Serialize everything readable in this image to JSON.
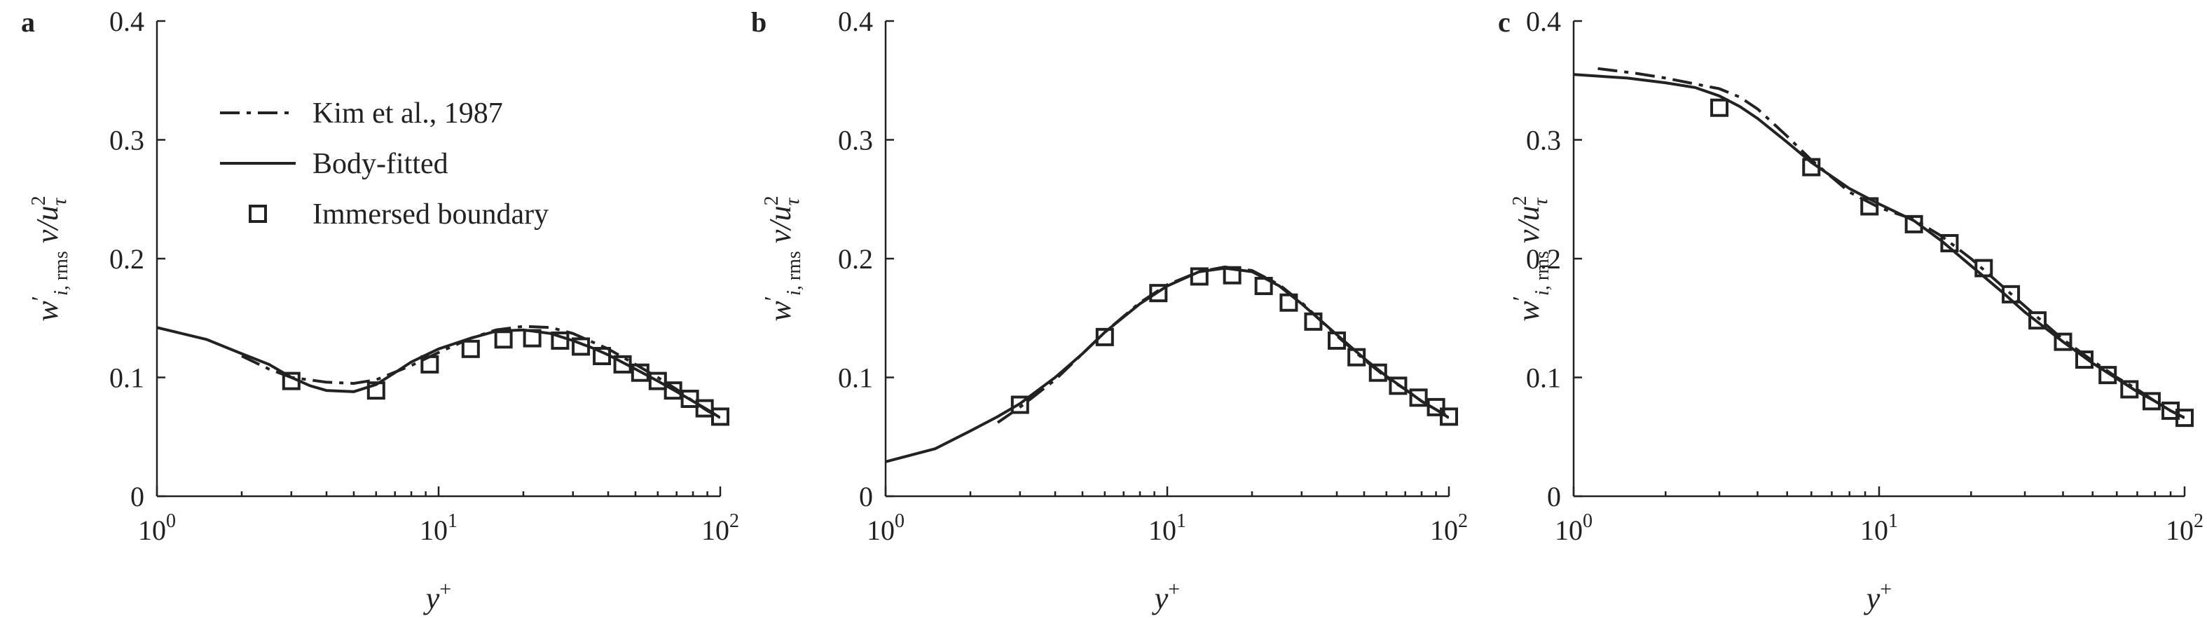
{
  "chart_data": [
    {
      "panel": "a",
      "type": "line",
      "xscale": "log",
      "xlim": [
        1,
        100
      ],
      "ylim": [
        0,
        0.4
      ],
      "xticks": [
        1,
        10,
        100
      ],
      "xtick_labels": [
        [
          "10",
          "0"
        ],
        [
          "10",
          "1"
        ],
        [
          "10",
          "2"
        ]
      ],
      "yticks": [
        0,
        0.1,
        0.2,
        0.3,
        0.4
      ],
      "ytick_labels": [
        "0",
        "0.1",
        "0.2",
        "0.3",
        "0.4"
      ],
      "xlabel": "y+",
      "ylabel": "w'i, rms v/u²τ",
      "legend": {
        "placement": "top-left",
        "entries": [
          "Kim et al., 1987",
          "Body-fitted",
          "Immersed boundary"
        ]
      },
      "series": [
        {
          "name": "Kim et al., 1987",
          "style": "dashdot",
          "x": [
            2.0,
            2.5,
            3.0,
            4.0,
            5.0,
            6.0,
            8.0,
            10.0,
            13.0,
            16.0,
            20.0,
            25.0,
            30.0,
            40.0,
            50.0,
            60.0,
            70.0,
            80.0,
            90.0,
            100.0
          ],
          "y": [
            0.118,
            0.107,
            0.1,
            0.096,
            0.095,
            0.098,
            0.11,
            0.121,
            0.133,
            0.14,
            0.143,
            0.142,
            0.137,
            0.124,
            0.111,
            0.1,
            0.09,
            0.08,
            0.072,
            0.066
          ]
        },
        {
          "name": "Body-fitted",
          "style": "solid",
          "x": [
            1.0,
            1.5,
            2.0,
            2.5,
            3.0,
            3.5,
            4.0,
            5.0,
            6.0,
            7.0,
            8.0,
            10.0,
            13.0,
            16.0,
            20.0,
            25.0,
            30.0,
            35.0,
            40.0,
            50.0,
            60.0,
            70.0,
            80.0,
            90.0,
            100.0
          ],
          "y": [
            0.142,
            0.132,
            0.12,
            0.111,
            0.1,
            0.093,
            0.089,
            0.088,
            0.094,
            0.104,
            0.113,
            0.124,
            0.133,
            0.139,
            0.14,
            0.137,
            0.131,
            0.125,
            0.119,
            0.107,
            0.097,
            0.088,
            0.08,
            0.073,
            0.066
          ]
        },
        {
          "name": "Immersed boundary",
          "style": "square-marker",
          "x": [
            3.0,
            6.0,
            9.3,
            13.0,
            17.0,
            21.5,
            27.0,
            32.0,
            38.0,
            45.0,
            52.0,
            60.0,
            68.0,
            78.0,
            88.0,
            100.0
          ],
          "y": [
            0.097,
            0.089,
            0.111,
            0.124,
            0.132,
            0.133,
            0.131,
            0.126,
            0.118,
            0.111,
            0.104,
            0.097,
            0.089,
            0.082,
            0.074,
            0.067
          ]
        }
      ]
    },
    {
      "panel": "b",
      "type": "line",
      "xscale": "log",
      "xlim": [
        1,
        100
      ],
      "ylim": [
        0,
        0.4
      ],
      "xticks": [
        1,
        10,
        100
      ],
      "xtick_labels": [
        [
          "10",
          "0"
        ],
        [
          "10",
          "1"
        ],
        [
          "10",
          "2"
        ]
      ],
      "yticks": [
        0,
        0.1,
        0.2,
        0.3,
        0.4
      ],
      "ytick_labels": [
        "0",
        "0.1",
        "0.2",
        "0.3",
        "0.4"
      ],
      "xlabel": "y+",
      "ylabel": "w'i, rms v/u²τ",
      "series": [
        {
          "name": "Kim et al., 1987",
          "style": "dashdot",
          "x": [
            2.5,
            3.0,
            4.0,
            5.0,
            6.0,
            8.0,
            10.0,
            13.0,
            16.0,
            20.0,
            25.0,
            30.0,
            40.0,
            50.0,
            60.0,
            70.0,
            80.0,
            90.0,
            100.0
          ],
          "y": [
            0.062,
            0.075,
            0.098,
            0.12,
            0.138,
            0.163,
            0.178,
            0.189,
            0.193,
            0.19,
            0.178,
            0.163,
            0.135,
            0.115,
            0.1,
            0.09,
            0.08,
            0.073,
            0.067
          ]
        },
        {
          "name": "Body-fitted",
          "style": "solid",
          "x": [
            1.0,
            1.5,
            2.0,
            2.5,
            3.0,
            4.0,
            5.0,
            6.0,
            8.0,
            10.0,
            13.0,
            16.0,
            20.0,
            25.0,
            30.0,
            40.0,
            50.0,
            60.0,
            70.0,
            80.0,
            90.0,
            100.0
          ],
          "y": [
            0.029,
            0.04,
            0.055,
            0.067,
            0.078,
            0.1,
            0.12,
            0.138,
            0.162,
            0.177,
            0.189,
            0.192,
            0.189,
            0.177,
            0.162,
            0.136,
            0.116,
            0.101,
            0.09,
            0.08,
            0.073,
            0.066
          ]
        },
        {
          "name": "Immersed boundary",
          "style": "square-marker",
          "x": [
            3.0,
            6.0,
            9.3,
            13.0,
            17.0,
            22.0,
            27.0,
            33.0,
            40.0,
            47.0,
            56.0,
            66.0,
            78.0,
            90.0,
            100.0
          ],
          "y": [
            0.077,
            0.134,
            0.171,
            0.185,
            0.186,
            0.177,
            0.163,
            0.147,
            0.131,
            0.117,
            0.104,
            0.093,
            0.083,
            0.075,
            0.067
          ]
        }
      ]
    },
    {
      "panel": "c",
      "type": "line",
      "xscale": "log",
      "xlim": [
        1,
        100
      ],
      "ylim": [
        0,
        0.4
      ],
      "xticks": [
        1,
        10,
        100
      ],
      "xtick_labels": [
        [
          "10",
          "0"
        ],
        [
          "10",
          "1"
        ],
        [
          "10",
          "2"
        ]
      ],
      "yticks": [
        0,
        0.1,
        0.2,
        0.3,
        0.4
      ],
      "ytick_labels": [
        "0",
        "0.1",
        "0.2",
        "0.3",
        "0.4"
      ],
      "xlabel": "y+",
      "ylabel": "w'i, rms v/u²τ",
      "series": [
        {
          "name": "Kim et al., 1987",
          "style": "dashdot",
          "x": [
            1.2,
            1.6,
            2.0,
            2.5,
            3.0,
            3.5,
            4.0,
            5.0,
            6.0,
            8.0,
            10.0,
            13.0,
            16.0,
            20.0,
            25.0,
            30.0,
            40.0,
            50.0,
            60.0,
            70.0,
            80.0,
            90.0,
            100.0
          ],
          "y": [
            0.36,
            0.356,
            0.352,
            0.347,
            0.343,
            0.336,
            0.326,
            0.303,
            0.283,
            0.256,
            0.243,
            0.233,
            0.219,
            0.2,
            0.178,
            0.16,
            0.132,
            0.114,
            0.1,
            0.09,
            0.08,
            0.072,
            0.066
          ]
        },
        {
          "name": "Body-fitted",
          "style": "solid",
          "x": [
            1.0,
            1.5,
            2.0,
            2.5,
            3.0,
            3.5,
            4.0,
            5.0,
            6.0,
            8.0,
            10.0,
            13.0,
            16.0,
            20.0,
            25.0,
            30.0,
            40.0,
            50.0,
            60.0,
            70.0,
            80.0,
            90.0,
            100.0
          ],
          "y": [
            0.355,
            0.352,
            0.348,
            0.344,
            0.337,
            0.328,
            0.318,
            0.298,
            0.281,
            0.259,
            0.246,
            0.232,
            0.215,
            0.194,
            0.173,
            0.155,
            0.13,
            0.112,
            0.099,
            0.088,
            0.08,
            0.072,
            0.066
          ]
        },
        {
          "name": "Immersed boundary",
          "style": "square-marker",
          "x": [
            3.0,
            6.0,
            9.3,
            13.0,
            17.0,
            22.0,
            27.0,
            33.0,
            40.0,
            47.0,
            56.0,
            66.0,
            78.0,
            90.0,
            100.0
          ],
          "y": [
            0.327,
            0.277,
            0.244,
            0.229,
            0.213,
            0.192,
            0.17,
            0.148,
            0.13,
            0.115,
            0.102,
            0.09,
            0.08,
            0.072,
            0.066
          ]
        }
      ]
    }
  ]
}
